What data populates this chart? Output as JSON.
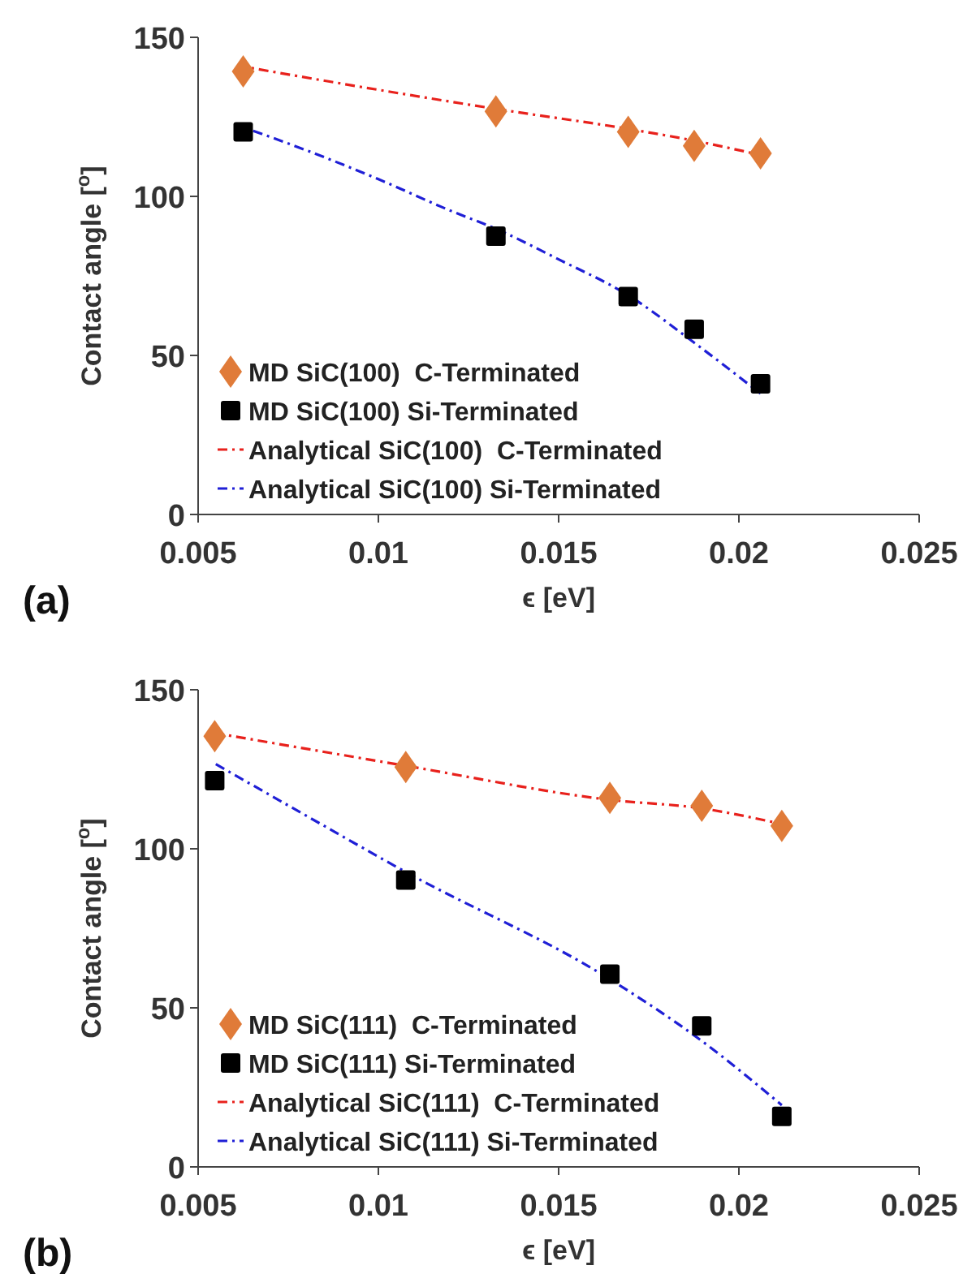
{
  "chart_data": [
    {
      "type": "scatter",
      "xlabel": "ϵ [eV]",
      "ylabel": "Contact angle [$^{o}$]",
      "xlim": [
        0.005,
        0.025
      ],
      "xticks": [
        0.005,
        0.01,
        0.015,
        0.02,
        0.025
      ],
      "ylim": [
        0,
        150
      ],
      "yticks": [
        0,
        50,
        100,
        150
      ],
      "grid": false,
      "legend": "bottom left",
      "annotations": [
        "(a)"
      ],
      "series": [
        {
          "name": "MD SiC(100)  C-Terminated",
          "marker": "diamond",
          "color": "#e07b39",
          "x": [
            0.00625,
            0.01326,
            0.01693,
            0.01876,
            0.0206
          ],
          "values": [
            139.3,
            126.7,
            120.3,
            115.9,
            113.5
          ]
        },
        {
          "name": "MD SiC(100) Si-Terminated",
          "marker": "square",
          "color": "#000000",
          "x": [
            0.00625,
            0.01326,
            0.01693,
            0.01876,
            0.0206
          ],
          "values": [
            120.3,
            87.5,
            68.5,
            58.2,
            41.1
          ]
        },
        {
          "name": "Analytical SiC(100)  C-Terminated",
          "type": "line",
          "line_style": "dashed",
          "color": "#e8211c",
          "x": [
            0.0063,
            0.01,
            0.01326,
            0.01693,
            0.01876,
            0.0206
          ],
          "values": [
            140.7,
            133.5,
            127.5,
            121.2,
            117.5,
            113.0
          ]
        },
        {
          "name": "Analytical SiC(100) Si-Terminated",
          "type": "line",
          "line_style": "dashed",
          "color": "#1f1fd6",
          "x": [
            0.0063,
            0.008,
            0.01,
            0.012,
            0.01326,
            0.015,
            0.01693,
            0.01876,
            0.0206
          ],
          "values": [
            121.5,
            114.5,
            105.4,
            95.5,
            89.8,
            80.2,
            68.9,
            54.0,
            38.0
          ]
        }
      ]
    },
    {
      "type": "scatter",
      "xlabel": "ϵ [eV]",
      "ylabel": "Contact angle [$^{o}$]",
      "xlim": [
        0.005,
        0.025
      ],
      "xticks": [
        0.005,
        0.01,
        0.015,
        0.02,
        0.025
      ],
      "ylim": [
        0,
        150
      ],
      "yticks": [
        0,
        50,
        100,
        150
      ],
      "grid": false,
      "legend": "bottom left",
      "annotations": [
        "(b)"
      ],
      "series": [
        {
          "name": "MD SiC(111)  C-Terminated",
          "marker": "diamond",
          "color": "#e07b39",
          "x": [
            0.00546,
            0.01076,
            0.01642,
            0.01897,
            0.02119
          ],
          "values": [
            135.4,
            125.7,
            116.0,
            113.5,
            107.2
          ]
        },
        {
          "name": "MD SiC(111) Si-Terminated",
          "marker": "square",
          "color": "#000000",
          "x": [
            0.00546,
            0.01076,
            0.01642,
            0.01897,
            0.02119
          ],
          "values": [
            121.4,
            90.2,
            60.6,
            44.3,
            15.9
          ]
        },
        {
          "name": "Analytical SiC(111)  C-Terminated",
          "type": "line",
          "line_style": "dashed",
          "color": "#e8211c",
          "x": [
            0.00546,
            0.01076,
            0.01642,
            0.01897,
            0.02119
          ],
          "values": [
            136.4,
            126.1,
            115.4,
            112.7,
            107.8
          ]
        },
        {
          "name": "Analytical SiC(111) Si-Terminated",
          "type": "line",
          "line_style": "dashed",
          "color": "#1f1fd6",
          "x": [
            0.00546,
            0.008,
            0.01076,
            0.01642,
            0.01897,
            0.02119
          ],
          "values": [
            126.8,
            110.4,
            92.7,
            59.0,
            39.6,
            19.4
          ]
        }
      ]
    }
  ]
}
